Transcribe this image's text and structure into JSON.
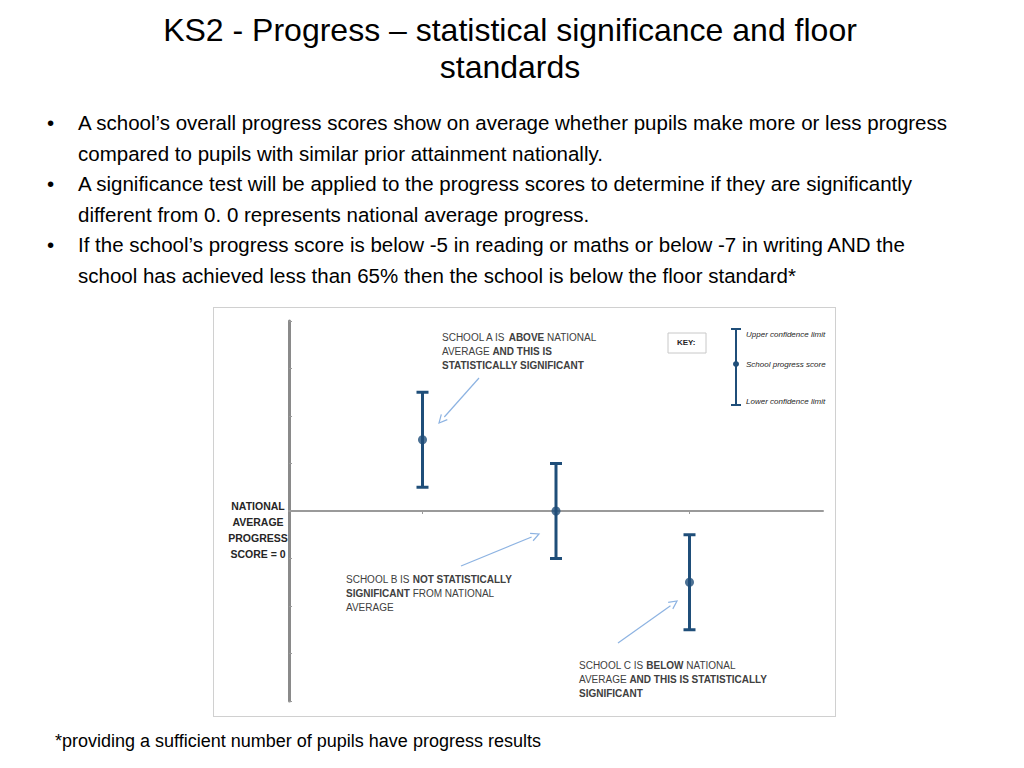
{
  "title": "KS2 - Progress – statistical significance and floor standards",
  "bullets": [
    "A school’s overall progress scores show on average whether pupils make more or less progress compared to pupils with similar prior attainment nationally.",
    "A significance test will be applied to the progress scores to determine if they are significantly different from 0. 0 represents national average progress.",
    "If the school’s progress score is below -5 in reading or maths or below -7 in writing AND the school has achieved less than 65% then the school is below the floor standard*"
  ],
  "footnote": "*providing a sufficient number of pupils have progress results",
  "chart_data": {
    "type": "scatter",
    "x": [
      1,
      2,
      3
    ],
    "xlim": [
      0,
      4
    ],
    "xticks": [
      1,
      2,
      3
    ],
    "ylim": [
      -4,
      4
    ],
    "yticks": [
      -4,
      -3,
      -2,
      -1,
      0,
      1,
      2,
      3,
      4
    ],
    "values": [
      1.5,
      0,
      -1.5
    ],
    "lower": [
      0.5,
      -1,
      -2.5
    ],
    "upper": [
      2.5,
      1,
      -0.5
    ],
    "color": "#1f4e79",
    "grid": false,
    "tick_labels": false,
    "y_label": [
      "NATIONAL",
      "AVERAGE",
      "PROGRESS",
      "SCORE = 0"
    ],
    "annotations": [
      {
        "lines": [
          "SCHOOL A IS ABOVE NATIONAL",
          "AVERAGE AND THIS IS",
          "STATISTICALLY SIGNIFICANT"
        ],
        "bold": [
          "ABOVE",
          "AND THIS IS",
          "STATISTICALLY SIGNIFICANT"
        ]
      },
      {
        "lines": [
          "SCHOOL B IS NOT STATISTICALLY",
          "SIGNIFICANT FROM NATIONAL",
          "AVERAGE"
        ],
        "bold": [
          "NOT STATISTICALLY",
          "SIGNIFICANT"
        ]
      },
      {
        "lines": [
          "SCHOOL C IS BELOW NATIONAL",
          "AVERAGE AND THIS IS STATISTICALLY",
          "SIGNIFICANT"
        ],
        "bold": [
          "BELOW",
          "AND THIS IS STATISTICALLY",
          "SIGNIFICANT"
        ]
      }
    ],
    "key": {
      "title": "KEY:",
      "upper": "Upper confidence limit",
      "point": "School progress score",
      "lower": "Lower confidence limit"
    }
  }
}
